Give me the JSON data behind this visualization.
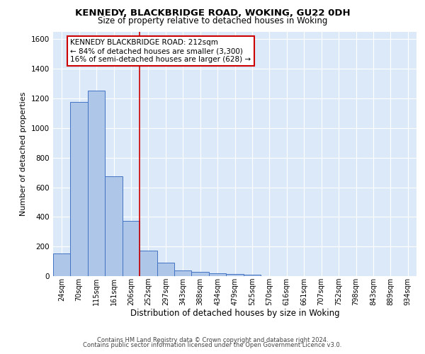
{
  "title1": "KENNEDY, BLACKBRIDGE ROAD, WOKING, GU22 0DH",
  "title2": "Size of property relative to detached houses in Woking",
  "xlabel": "Distribution of detached houses by size in Woking",
  "ylabel": "Number of detached properties",
  "categories": [
    "24sqm",
    "70sqm",
    "115sqm",
    "161sqm",
    "206sqm",
    "252sqm",
    "297sqm",
    "343sqm",
    "388sqm",
    "434sqm",
    "479sqm",
    "525sqm",
    "570sqm",
    "616sqm",
    "661sqm",
    "707sqm",
    "752sqm",
    "798sqm",
    "843sqm",
    "889sqm",
    "934sqm"
  ],
  "values": [
    155,
    1175,
    1255,
    675,
    375,
    170,
    90,
    38,
    28,
    18,
    15,
    10,
    0,
    0,
    0,
    0,
    0,
    0,
    0,
    0,
    0
  ],
  "bar_color": "#aec6e8",
  "bar_edge_color": "#4472c4",
  "background_color": "#dce9f8",
  "grid_color": "#ffffff",
  "vline_color": "#cc0000",
  "annotation_text": "KENNEDY BLACKBRIDGE ROAD: 212sqm\n← 84% of detached houses are smaller (3,300)\n16% of semi-detached houses are larger (628) →",
  "annotation_box_color": "#ffffff",
  "annotation_edge_color": "#cc0000",
  "ylim": [
    0,
    1650
  ],
  "yticks": [
    0,
    200,
    400,
    600,
    800,
    1000,
    1200,
    1400,
    1600
  ],
  "footer1": "Contains HM Land Registry data © Crown copyright and database right 2024.",
  "footer2": "Contains public sector information licensed under the Open Government Licence v3.0."
}
